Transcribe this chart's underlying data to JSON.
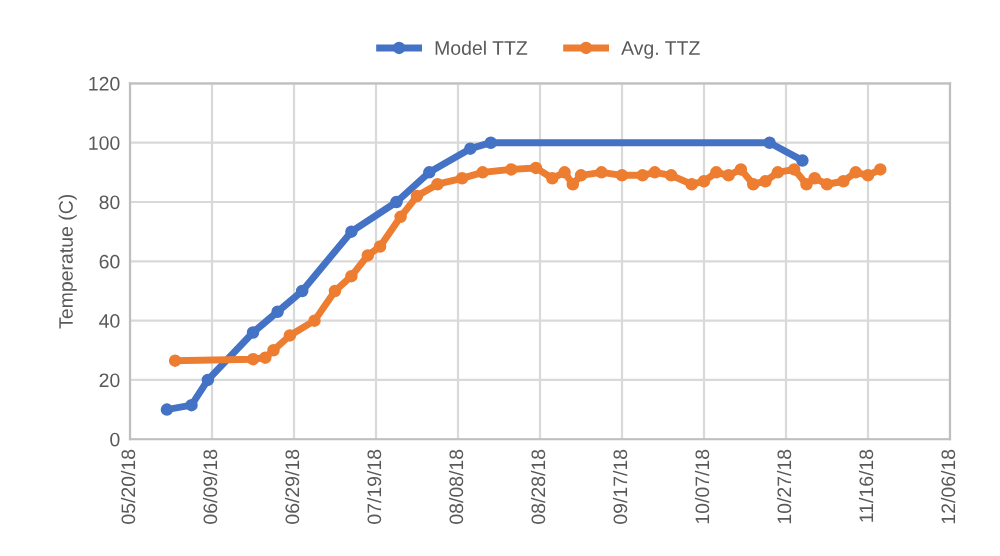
{
  "chart_data": {
    "type": "line",
    "ylabel": "Temperatue (C)",
    "series": [
      {
        "name": "Model TTZ",
        "color": "#4472c4",
        "x": [
          "2018-05-29",
          "2018-06-04",
          "2018-06-08",
          "2018-06-19",
          "2018-06-25",
          "2018-07-01",
          "2018-07-13",
          "2018-07-24",
          "2018-08-01",
          "2018-08-11",
          "2018-08-16",
          "2018-10-23",
          "2018-10-31"
        ],
        "values": [
          10,
          11.5,
          20,
          36,
          43,
          50,
          70,
          80,
          90,
          98,
          100,
          100,
          94
        ]
      },
      {
        "name": "Avg. TTZ",
        "color": "#ed7d31",
        "x": [
          "2018-05-31",
          "2018-06-19",
          "2018-06-22",
          "2018-06-24",
          "2018-06-28",
          "2018-07-04",
          "2018-07-09",
          "2018-07-13",
          "2018-07-17",
          "2018-07-20",
          "2018-07-25",
          "2018-07-29",
          "2018-08-03",
          "2018-08-09",
          "2018-08-14",
          "2018-08-21",
          "2018-08-27",
          "2018-08-31",
          "2018-09-03",
          "2018-09-05",
          "2018-09-07",
          "2018-09-12",
          "2018-09-17",
          "2018-09-22",
          "2018-09-25",
          "2018-09-29",
          "2018-10-04",
          "2018-10-07",
          "2018-10-10",
          "2018-10-13",
          "2018-10-16",
          "2018-10-19",
          "2018-10-22",
          "2018-10-25",
          "2018-10-29",
          "2018-11-01",
          "2018-11-03",
          "2018-11-06",
          "2018-11-10",
          "2018-11-13",
          "2018-11-16",
          "2018-11-19"
        ],
        "values": [
          26.5,
          27,
          27.5,
          30,
          35,
          40,
          50,
          55,
          62,
          65,
          75,
          82,
          86,
          88,
          90,
          91,
          91.5,
          88,
          90,
          86,
          89,
          90,
          89,
          89,
          90,
          89,
          86,
          87,
          90,
          89,
          91,
          86,
          87,
          90,
          91,
          86,
          88,
          86,
          87,
          90,
          89,
          91
        ]
      }
    ],
    "xlim": [
      "2018-05-20",
      "2018-12-06"
    ],
    "xticks": [
      {
        "value": "2018-05-20",
        "label": "05/20/18"
      },
      {
        "value": "2018-06-09",
        "label": "06/09/18"
      },
      {
        "value": "2018-06-29",
        "label": "06/29/18"
      },
      {
        "value": "2018-07-19",
        "label": "07/19/18"
      },
      {
        "value": "2018-08-08",
        "label": "08/08/18"
      },
      {
        "value": "2018-08-28",
        "label": "08/28/18"
      },
      {
        "value": "2018-09-17",
        "label": "09/17/18"
      },
      {
        "value": "2018-10-07",
        "label": "10/07/18"
      },
      {
        "value": "2018-10-27",
        "label": "10/27/18"
      },
      {
        "value": "2018-11-16",
        "label": "11/16/18"
      },
      {
        "value": "2018-12-06",
        "label": "12/06/18"
      }
    ],
    "ylim": [
      0,
      120
    ],
    "yticks": [
      0,
      20,
      40,
      60,
      80,
      100,
      120
    ],
    "grid": true,
    "legend": "top",
    "marker": "circle",
    "line_style": "solid"
  }
}
